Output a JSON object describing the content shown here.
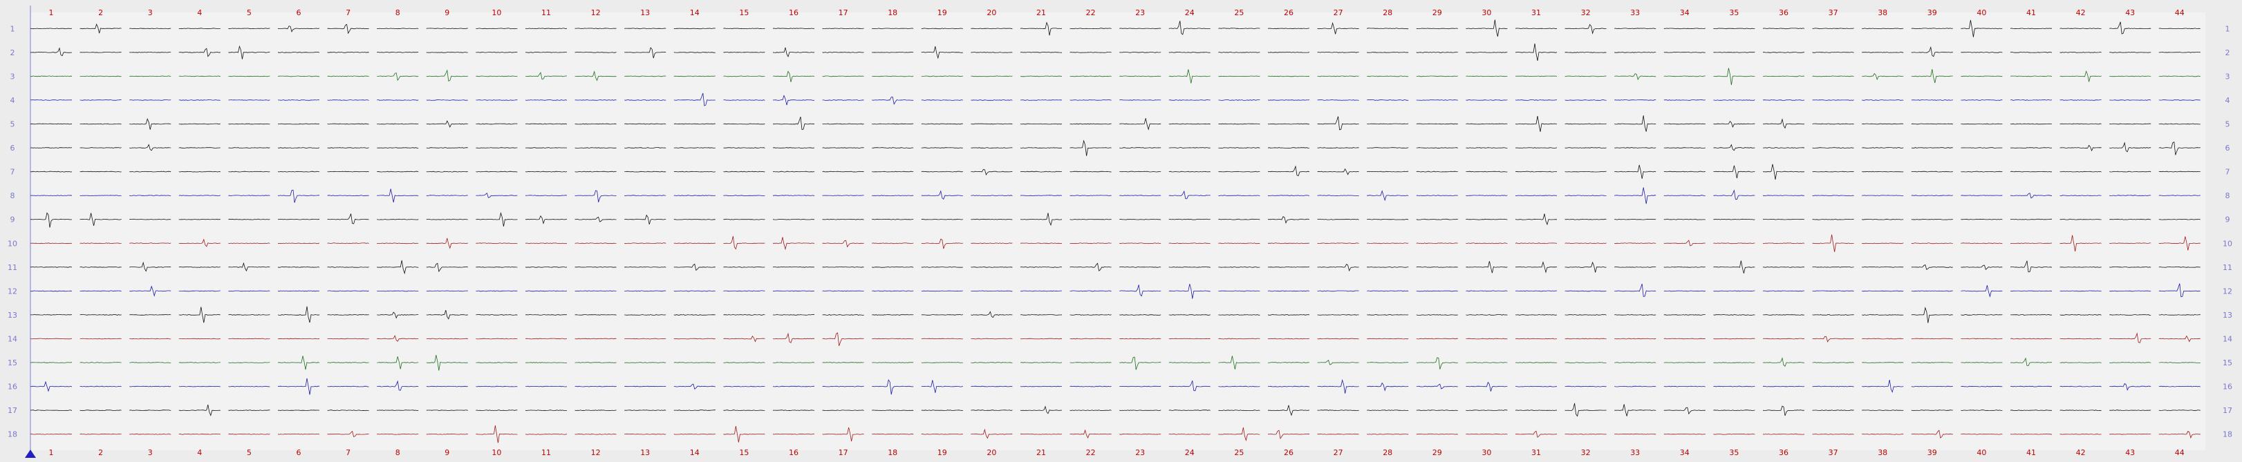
{
  "colors": {
    "background": "#ececec",
    "panel": "#f2f2f2",
    "column_number": "#c00000",
    "row_number": "#7878cc",
    "axis_line": "#9090e0",
    "cursor_marker": "#2020c0",
    "trace_black": "#111111",
    "trace_blue": "#1a1aa8",
    "trace_green": "#1e6e1e",
    "trace_red": "#a01818"
  },
  "grid": {
    "columns": [
      "1",
      "2",
      "3",
      "4",
      "5",
      "6",
      "7",
      "8",
      "9",
      "10",
      "11",
      "12",
      "13",
      "14",
      "15",
      "16",
      "17",
      "18",
      "19",
      "20",
      "21",
      "22",
      "23",
      "24",
      "25",
      "26",
      "27",
      "28",
      "29",
      "30",
      "31",
      "32",
      "33",
      "34",
      "35",
      "36",
      "37",
      "38",
      "39",
      "40",
      "41",
      "42",
      "43",
      "44"
    ],
    "rows": [
      "1",
      "2",
      "3",
      "4",
      "5",
      "6",
      "7",
      "8",
      "9",
      "10",
      "11",
      "12",
      "13",
      "14",
      "15",
      "16",
      "17",
      "18"
    ],
    "row_trace_colors": [
      "black",
      "black",
      "green",
      "blue",
      "black",
      "black",
      "black",
      "blue",
      "black",
      "red",
      "black",
      "blue",
      "black",
      "red",
      "green",
      "blue",
      "black",
      "red"
    ]
  }
}
